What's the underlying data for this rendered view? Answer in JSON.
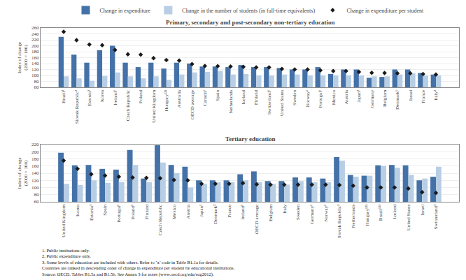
{
  "chart_data": [
    {
      "type": "bar",
      "title": "Primary, secondary and post-secondary non-tertiary education",
      "y_label": "Index of change\n(2000 = 100)",
      "categories": [
        "Brazil²",
        "Slovak Republic²",
        "Estonia³",
        "Korea",
        "Ireland¹",
        "Czech Republic",
        "Poland",
        "United Kingdom",
        "Hungary¹²³",
        "Australia",
        "OECD average",
        "Canada¹",
        "Spain",
        "Netherlands",
        "Iceland",
        "Finland",
        "Switzerland¹",
        "United States",
        "Sweden",
        "Norway¹",
        "Portugal¹",
        "Mexico",
        "Austria",
        "Japan²",
        "Germany",
        "Belgium",
        "Denmark¹",
        "Israel",
        "France",
        "Italy²"
      ],
      "series": [
        {
          "name": "Change in expenditure",
          "type": "bar",
          "color": "#4472A8",
          "values": [
            230,
            170,
            143,
            185,
            200,
            143,
            128,
            143,
            123,
            143,
            140,
            130,
            130,
            128,
            135,
            128,
            128,
            125,
            120,
            120,
            128,
            105,
            120,
            120,
            92,
            95,
            120,
            120,
            108,
            103
          ]
        },
        {
          "name": "Change in the number of students (in full-time equivalents)",
          "type": "bar",
          "color": "#B8CEE4",
          "values": [
            97,
            90,
            82,
            98,
            110,
            97,
            90,
            97,
            85,
            103,
            110,
            112,
            115,
            103,
            105,
            100,
            100,
            103,
            103,
            100,
            100,
            100,
            100,
            100,
            97,
            97,
            103,
            107,
            100,
            100
          ]
        },
        {
          "name": "Change in expenditure per student",
          "type": "scatter",
          "marker": "diamond",
          "color": "#1a1a1a",
          "values": [
            247,
            219,
            204,
            202,
            186,
            171,
            170,
            158,
            152,
            150,
            138,
            132,
            131,
            130,
            129,
            127,
            127,
            122,
            120,
            120,
            117,
            115,
            115,
            112,
            109,
            108,
            107,
            107,
            105,
            103
          ]
        }
      ],
      "ylim": [
        60,
        260
      ],
      "yticks": [
        60,
        80,
        100,
        120,
        140,
        160,
        180,
        200,
        220,
        240,
        260
      ],
      "grid": true,
      "legend": "top"
    },
    {
      "type": "bar",
      "title": "Tertiary education",
      "y_label": "Index of change\n(2000 = 100)",
      "categories": [
        "United Kingdom",
        "Korea",
        "Estonia³",
        "Spain",
        "Portugal¹",
        "Poland¹",
        "Finland",
        "Czech Republic",
        "Mexico",
        "Austria",
        "Japan¹",
        "Denmark²",
        "France",
        "Ireland¹",
        "OECD average",
        "Belgium",
        "Italy",
        "Sweden",
        "Germany¹",
        "Norway¹",
        "Slovak Republic²",
        "Netherlands",
        "Hungary¹²³",
        "Brazil¹²³",
        "Iceland",
        "United States",
        "Israel",
        "Switzerland³"
      ],
      "series": [
        {
          "name": "Change in expenditure",
          "type": "bar",
          "color": "#4472A8",
          "values": [
            197,
            162,
            163,
            152,
            150,
            205,
            125,
            218,
            163,
            158,
            120,
            120,
            120,
            137,
            145,
            118,
            118,
            128,
            128,
            125,
            185,
            135,
            133,
            162,
            163,
            162,
            120,
            130
          ]
        },
        {
          "name": "Change in the number of students (in full-time equivalents)",
          "type": "bar",
          "color": "#B8CEE4",
          "values": [
            110,
            107,
            120,
            113,
            115,
            163,
            115,
            170,
            140,
            100,
            110,
            115,
            115,
            120,
            115,
            110,
            108,
            118,
            115,
            115,
            175,
            130,
            133,
            160,
            155,
            135,
            125,
            158
          ]
        },
        {
          "name": "Change in expenditure per student",
          "type": "scatter",
          "marker": "diamond",
          "color": "#1a1a1a",
          "values": [
            175,
            152,
            137,
            133,
            130,
            128,
            127,
            126,
            121,
            120,
            110,
            110,
            110,
            112,
            109,
            108,
            108,
            108,
            108,
            108,
            107,
            105,
            100,
            100,
            100,
            97,
            87,
            85
          ]
        }
      ],
      "ylim": [
        60,
        220
      ],
      "yticks": [
        60,
        80,
        100,
        120,
        140,
        160,
        180,
        200,
        220
      ],
      "grid": true,
      "annotations": [
        "1. Public institutions only.\n2. Public expenditure only.\n3. Some levels of education are included with others. Refer to ‘x’ code in Table B1.1a for details.\nCountries are ranked in descending order of change in expenditure per student by educational institutions.\nSource: OECD. Tables B1.5a and B1.5b. See Annex 3 for notes (www.oecd.org/edu/eag2012)."
      ]
    }
  ]
}
